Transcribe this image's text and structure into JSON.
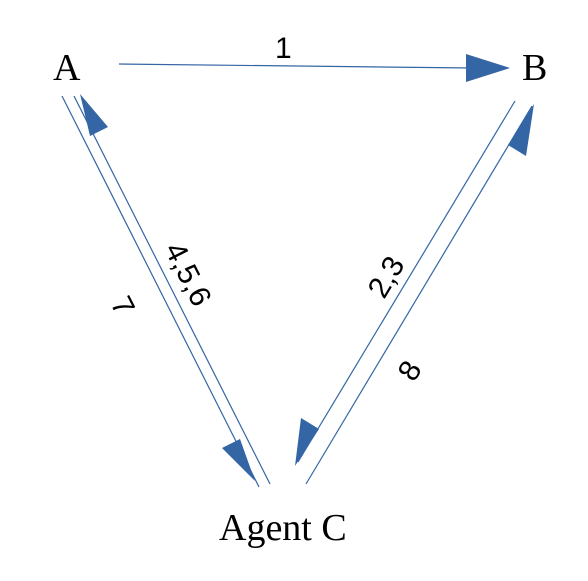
{
  "diagram": {
    "nodes": {
      "a": {
        "label": "A"
      },
      "b": {
        "label": "B"
      },
      "c": {
        "label": "Agent C"
      }
    },
    "edges": {
      "a_to_b": {
        "label": "1"
      },
      "b_to_c": {
        "label": "2,3"
      },
      "c_to_a": {
        "label": "4,5,6"
      },
      "a_to_c": {
        "label": "7"
      },
      "c_to_b": {
        "label": "8"
      }
    },
    "colors": {
      "line": "#3465a4",
      "arrowhead": "#3465a4",
      "text": "#000000"
    }
  }
}
